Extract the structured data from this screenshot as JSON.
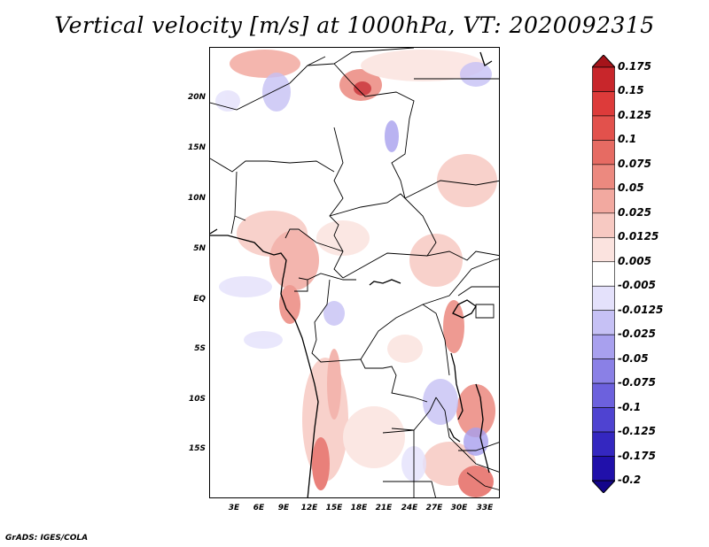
{
  "title": "Vertical velocity [m/s] at 1000hPa, VT: 2020092315",
  "credit": "GrADS: IGES/COLA",
  "lat_labels": [
    "20N",
    "15N",
    "10N",
    "5N",
    "EQ",
    "5S",
    "10S",
    "15S"
  ],
  "lon_labels": [
    "3E",
    "6E",
    "9E",
    "12E",
    "15E",
    "18E",
    "21E",
    "24E",
    "27E",
    "30E",
    "33E"
  ],
  "colorbar": {
    "labels": [
      "0.175",
      "0.15",
      "0.125",
      "0.1",
      "0.075",
      "0.05",
      "0.025",
      "0.0125",
      "0.005",
      "-0.005",
      "-0.0125",
      "-0.025",
      "-0.05",
      "-0.075",
      "-0.1",
      "-0.125",
      "-0.175",
      "-0.2"
    ],
    "colors": [
      "#a5141a",
      "#c8262b",
      "#dd3b3a",
      "#e2514c",
      "#e66b63",
      "#ec897f",
      "#f2a9a0",
      "#f7c9c2",
      "#fbe3df",
      "#ffffff",
      "#e4e1fb",
      "#c6c1f5",
      "#a8a0ee",
      "#8a80e6",
      "#6c61dd",
      "#4f43d1",
      "#3427c0",
      "#2010aa",
      "#13058a"
    ]
  }
}
